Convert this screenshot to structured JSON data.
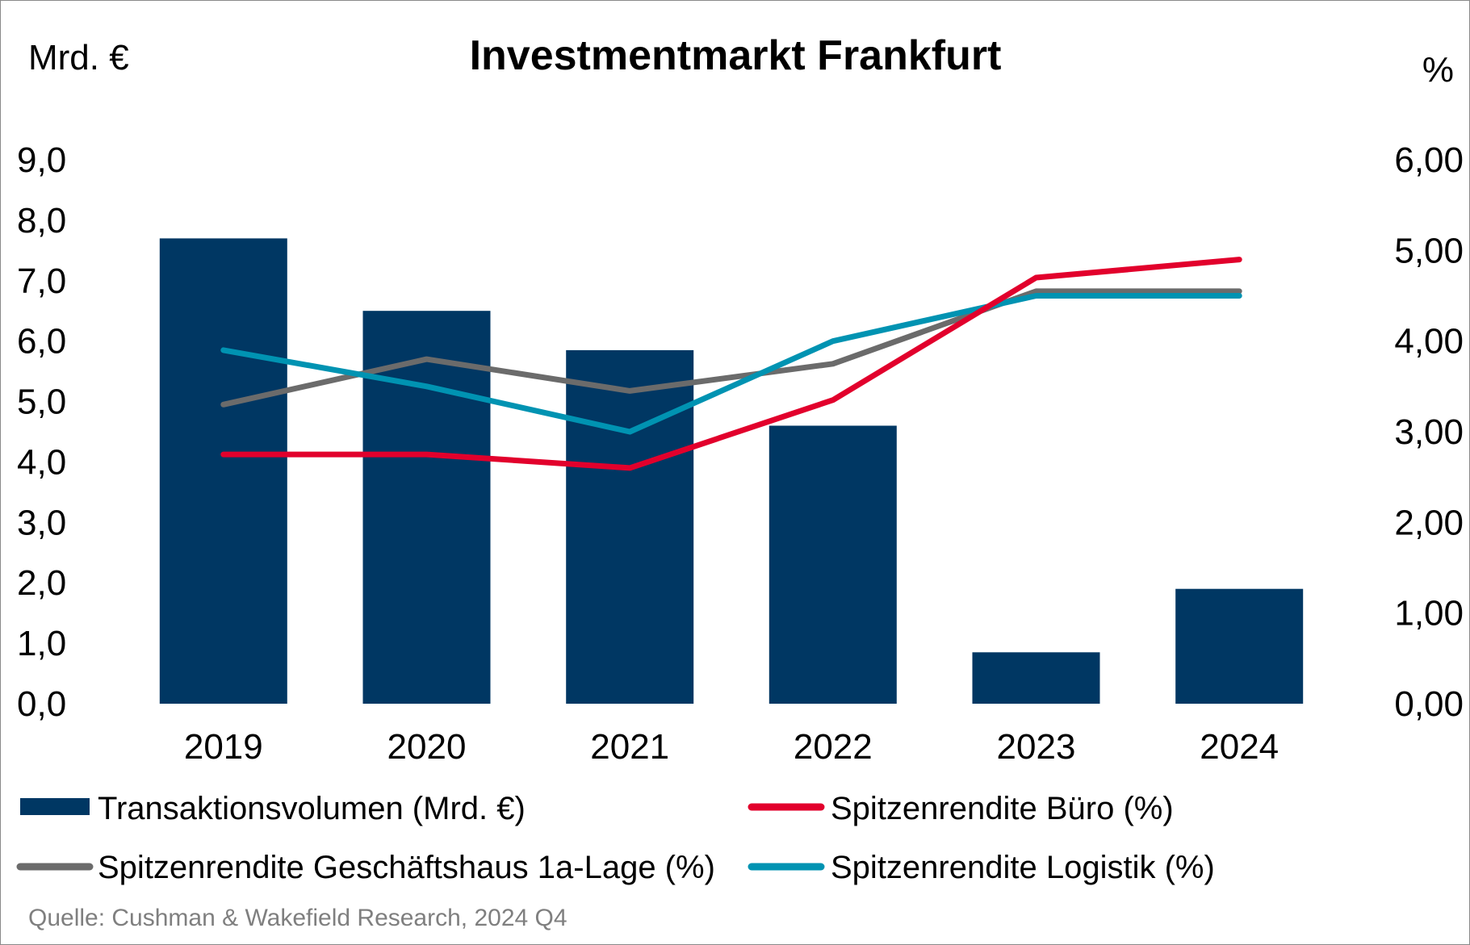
{
  "chart_data": {
    "type": "bar",
    "title": "Investmentmarkt Frankfurt",
    "ylabel_left": "Mrd. €",
    "ylabel_right": "%",
    "categories": [
      "2019",
      "2020",
      "2021",
      "2022",
      "2023",
      "2024"
    ],
    "ylim_left": [
      0,
      9
    ],
    "ylim_right": [
      0,
      6
    ],
    "yticks_left": [
      "0,0",
      "1,0",
      "2,0",
      "3,0",
      "4,0",
      "5,0",
      "6,0",
      "7,0",
      "8,0",
      "9,0"
    ],
    "yticks_right": [
      "0,00",
      "1,00",
      "2,00",
      "3,00",
      "4,00",
      "5,00",
      "6,00"
    ],
    "grid": false,
    "legend_position": "bottom",
    "bars": {
      "name": "Transaktionsvolumen (Mrd. €)",
      "axis": "left",
      "color": "#003763",
      "values": [
        7.7,
        6.5,
        5.85,
        4.6,
        0.85,
        1.9
      ]
    },
    "series": [
      {
        "name": "Spitzenrendite Büro (%)",
        "axis": "right",
        "color": "#e2002c",
        "values": [
          2.75,
          2.75,
          2.6,
          3.35,
          4.7,
          4.9
        ]
      },
      {
        "name": "Spitzenrendite Geschäftshaus 1a-Lage (%)",
        "axis": "right",
        "color": "#6b6b6b",
        "values": [
          3.3,
          3.8,
          3.45,
          3.75,
          4.55,
          4.55
        ]
      },
      {
        "name": "Spitzenrendite Logistik (%)",
        "axis": "right",
        "color": "#0093b2",
        "values": [
          3.9,
          3.5,
          3.0,
          4.0,
          4.5,
          4.5
        ]
      }
    ]
  },
  "source": "Quelle: Cushman & Wakefield Research, 2024 Q4"
}
